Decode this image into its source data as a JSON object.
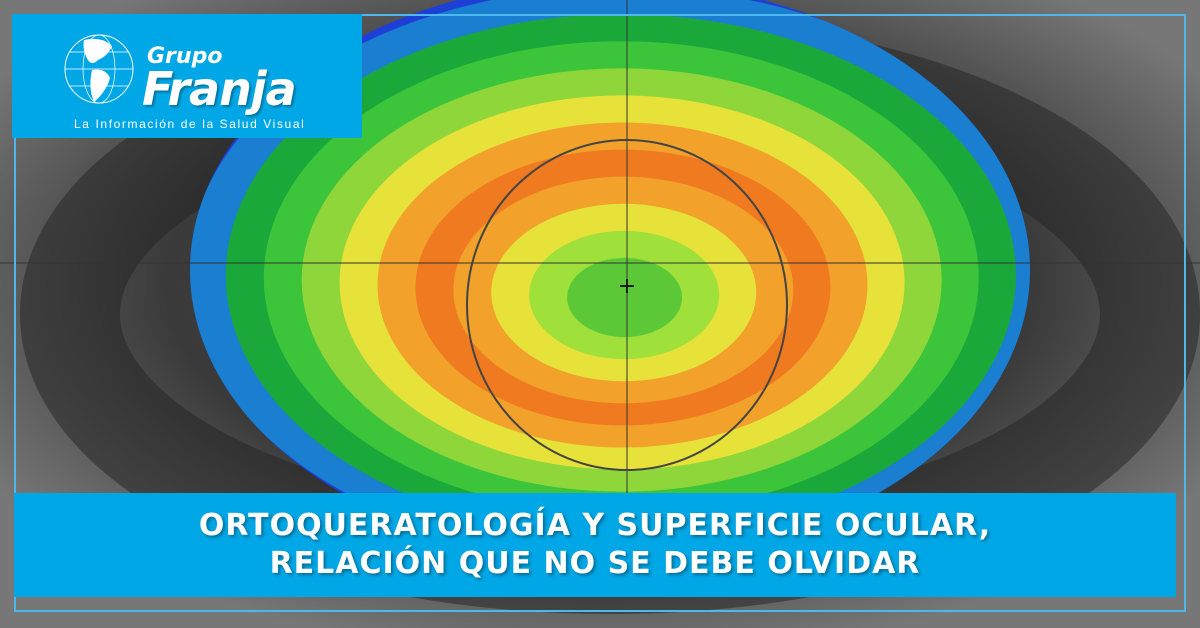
{
  "logo": {
    "line1": "Grupo",
    "line2": "Franja",
    "tagline": "La Información de la Salud Visual"
  },
  "headline": {
    "line1": "ORTOQUERATOLOGÍA Y SUPERFICIE OCULAR,",
    "line2": "RELACIÓN QUE NO SE DEBE OLVIDAR"
  },
  "colors": {
    "brand": "#00a7e6",
    "map_rings": [
      "#1e3fd6",
      "#1a7fd0",
      "#1aa83a",
      "#3cc43a",
      "#8fd63a",
      "#e6e23a",
      "#f2a12a",
      "#ef7a1f",
      "#f2a12a",
      "#e6e23a",
      "#9fe03a",
      "#5cc838"
    ]
  }
}
